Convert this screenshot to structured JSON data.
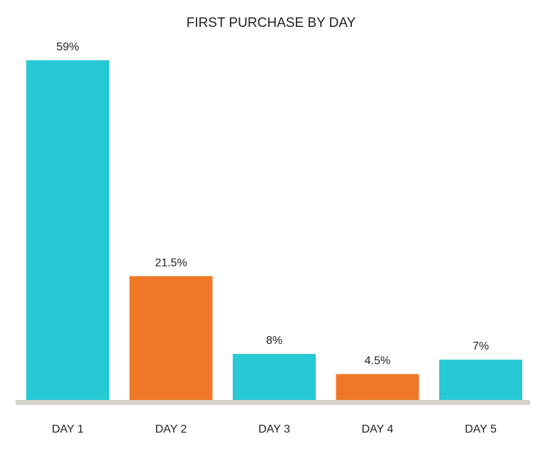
{
  "chart_data": {
    "type": "bar",
    "title": "FIRST PURCHASE BY DAY",
    "xlabel": "",
    "ylabel": "",
    "categories": [
      "DAY 1",
      "DAY 2",
      "DAY 3",
      "DAY 4",
      "DAY 5"
    ],
    "values": [
      59,
      21.5,
      8,
      4.5,
      7
    ],
    "value_labels": [
      "59%",
      "21.5%",
      "8%",
      "4.5%",
      "7%"
    ],
    "bar_colors": [
      "#26c9d4",
      "#ef7826",
      "#26c9d4",
      "#ef7826",
      "#26c9d4"
    ],
    "baseline_color": "#d6d2cb",
    "ylim": [
      0,
      59
    ],
    "grid": false,
    "legend": "none"
  }
}
